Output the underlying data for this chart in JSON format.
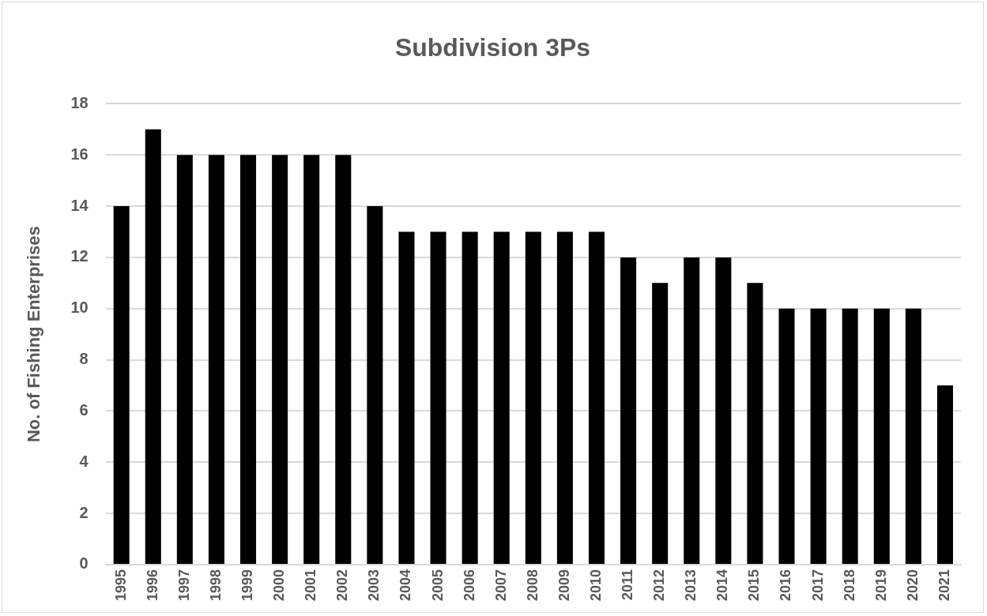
{
  "chart_data": {
    "type": "bar",
    "title": "Subdivision 3Ps",
    "ylabel": "No. of Fishing Enterprises",
    "categories": [
      "1995",
      "1996",
      "1997",
      "1998",
      "1999",
      "2000",
      "2001",
      "2002",
      "2003",
      "2004",
      "2005",
      "2006",
      "2007",
      "2008",
      "2009",
      "2010",
      "2011",
      "2012",
      "2013",
      "2014",
      "2015",
      "2016",
      "2017",
      "2018",
      "2019",
      "2020",
      "2021"
    ],
    "values": [
      14,
      17,
      16,
      16,
      16,
      16,
      16,
      16,
      14,
      13,
      13,
      13,
      13,
      13,
      13,
      13,
      12,
      11,
      12,
      12,
      11,
      10,
      10,
      10,
      10,
      10,
      7
    ],
    "color": "#000000",
    "ylim": [
      0,
      18
    ],
    "yticks": [
      0,
      2,
      4,
      6,
      8,
      10,
      12,
      14,
      16,
      18
    ],
    "grid": "y",
    "legend": false
  }
}
